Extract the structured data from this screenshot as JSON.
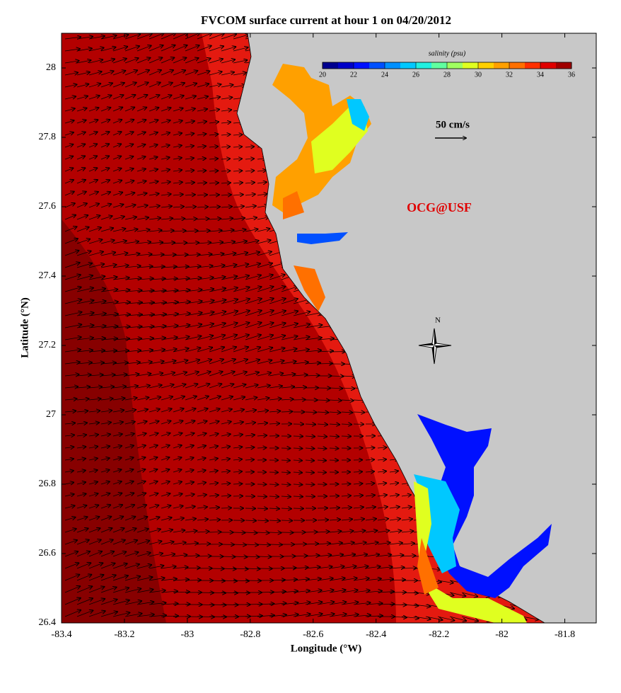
{
  "map": {
    "title": "FVCOM surface current at hour 1 on 04/20/2012",
    "xlabel": "Longitude (°W)",
    "ylabel": "Latitude (°N)",
    "xlim": [
      -83.4,
      -81.7
    ],
    "ylim": [
      26.4,
      28.1
    ],
    "xticks": [
      -83.4,
      -83.2,
      -83,
      -82.8,
      -82.6,
      -82.4,
      -82.2,
      -82,
      -81.8
    ],
    "yticks": [
      26.4,
      26.6,
      26.8,
      27,
      27.2,
      27.4,
      27.6,
      27.8,
      28
    ],
    "colorbar": {
      "label": "salinity (psu)",
      "lim": [
        20,
        36
      ],
      "ticks": [
        20,
        22,
        24,
        26,
        28,
        30,
        32,
        34,
        36
      ],
      "colors": [
        "#00008f",
        "#0000c8",
        "#0010ff",
        "#0050ff",
        "#0090ff",
        "#00c8ff",
        "#20f0e0",
        "#60ffa0",
        "#a0ff60",
        "#e0ff20",
        "#ffd000",
        "#ffa000",
        "#ff7000",
        "#ff3000",
        "#e00000",
        "#a00000"
      ]
    },
    "scale_label": "50 cm/s",
    "credit": "OCG@USF",
    "north": "N"
  }
}
